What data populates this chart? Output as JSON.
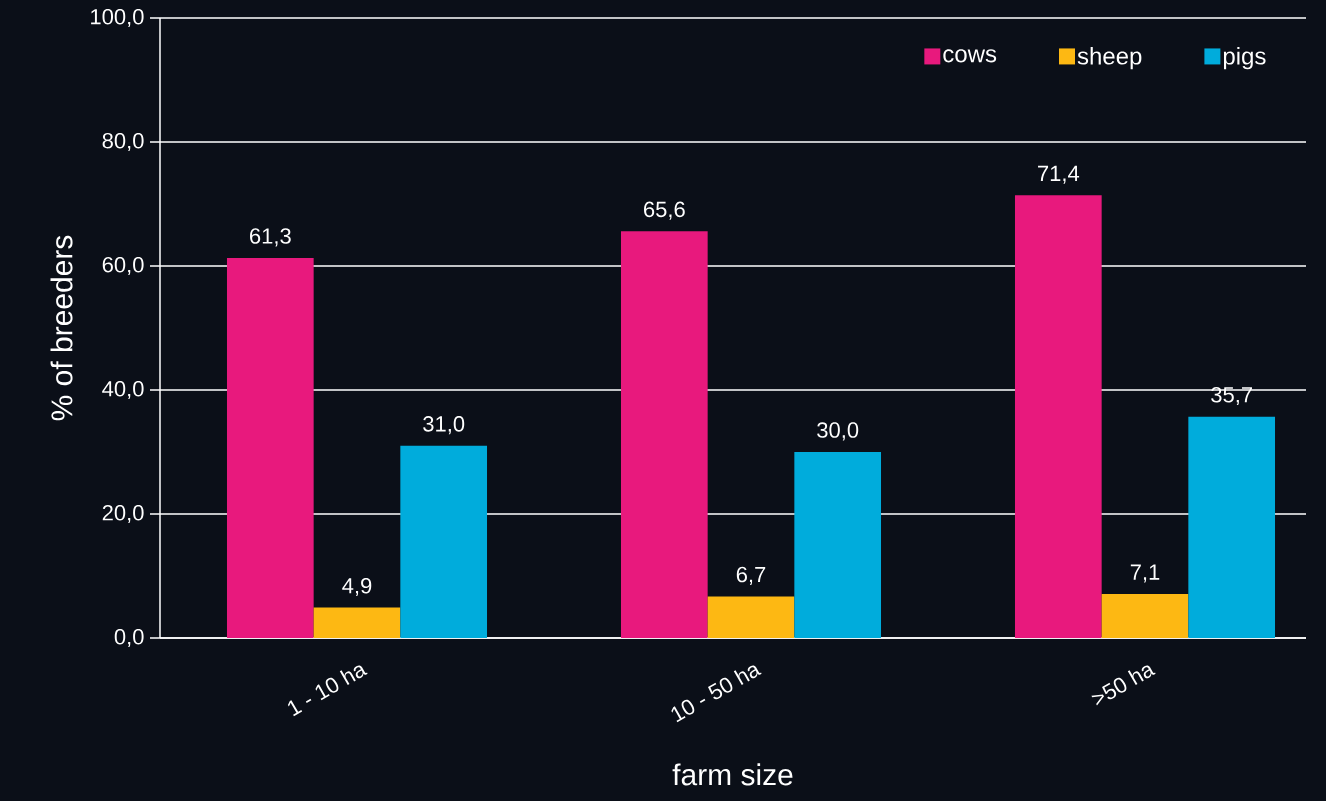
{
  "chart_data": {
    "type": "bar",
    "xlabel": "farm size",
    "ylabel": "% of breeders",
    "categories": [
      "1 - 10 ha",
      "10 - 50 ha",
      ">50 ha"
    ],
    "series": [
      {
        "name": "cows",
        "color": "#e8197d",
        "values": [
          61.3,
          65.6,
          71.4
        ],
        "value_labels": [
          "61,3",
          "65,6",
          "71,4"
        ]
      },
      {
        "name": "sheep",
        "color": "#fdb813",
        "values": [
          4.9,
          6.7,
          7.1
        ],
        "value_labels": [
          "4,9",
          "6,7",
          "7,1"
        ]
      },
      {
        "name": "pigs",
        "color": "#00acdc",
        "values": [
          31.0,
          30.0,
          35.7
        ],
        "value_labels": [
          "31,0",
          "30,0",
          "35,7"
        ]
      }
    ],
    "ylim": [
      0,
      100
    ],
    "yticks": [
      {
        "value": 0,
        "label": "0,0"
      },
      {
        "value": 20,
        "label": "20,0"
      },
      {
        "value": 40,
        "label": "40,0"
      },
      {
        "value": 60,
        "label": "60,0"
      },
      {
        "value": 80,
        "label": "80,0"
      },
      {
        "value": 100,
        "label": "100,0"
      }
    ],
    "grid": "y",
    "legend": "top right"
  }
}
